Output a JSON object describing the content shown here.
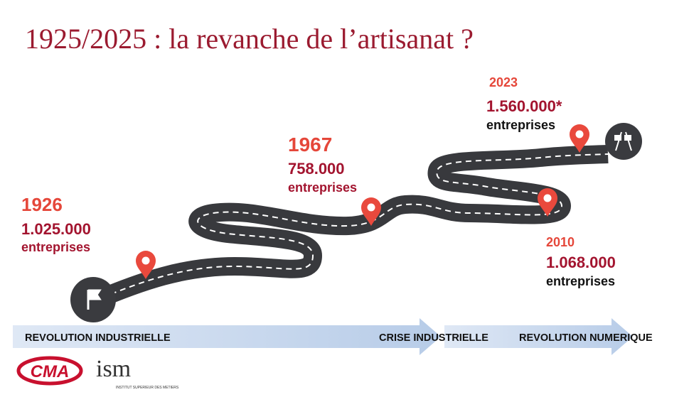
{
  "title": "1925/2025 : la revanche de l’artisanat ?",
  "milestones": [
    {
      "year": "1926",
      "count": "1.025.000",
      "unit": "entreprises"
    },
    {
      "year": "1967",
      "count": "758.000",
      "unit": "entreprises"
    },
    {
      "year": "2023",
      "count": "1.560.000*",
      "unit": "entreprises"
    },
    {
      "year": "2010",
      "count": "1.068.000",
      "unit": "entreprises"
    }
  ],
  "eras": [
    "REVOLUTION INDUSTRIELLE",
    "CRISE INDUSTRIELLE",
    "REVOLUTION NUMERIQUE"
  ],
  "logos": {
    "cma": "CMA",
    "ism": "ism",
    "ism_subtitle": "INSTITUT SUPERIEUR DES METIERS"
  }
}
